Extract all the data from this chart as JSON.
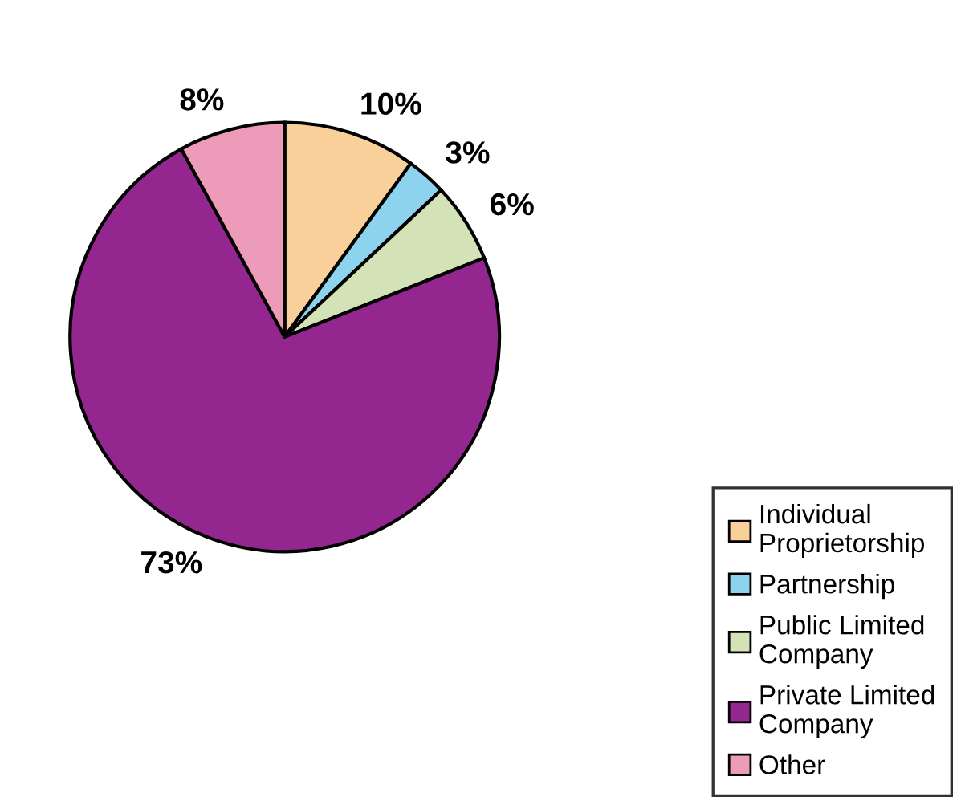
{
  "chart_data": {
    "type": "pie",
    "categories": [
      "Individual Proprietorship",
      "Partnership",
      "Public Limited Company",
      "Private Limited Company",
      "Other"
    ],
    "values": [
      10,
      3,
      6,
      73,
      8
    ],
    "colors": [
      "#f9cf9a",
      "#8dd3ee",
      "#d4e2b8",
      "#93278f",
      "#ec9bb8"
    ],
    "value_labels": [
      "10%",
      "3%",
      "6%",
      "73%",
      "8%"
    ],
    "legend": "bottom right"
  }
}
